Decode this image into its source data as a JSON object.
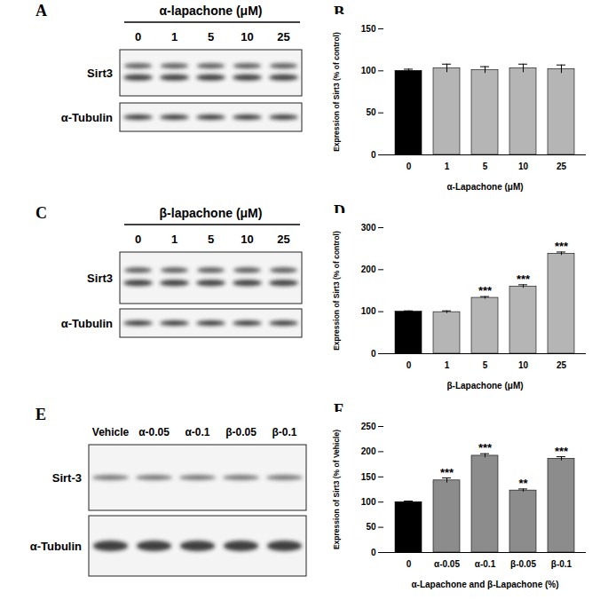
{
  "chart_data": [
    {
      "type": "bar",
      "title": "B",
      "categories": [
        "0",
        "1",
        "5",
        "10",
        "25"
      ],
      "values": [
        100,
        103,
        101,
        103,
        102
      ],
      "errors": [
        2,
        5,
        4,
        5,
        5
      ],
      "significance": [
        null,
        null,
        null,
        null,
        null
      ],
      "colors": [
        "#000000",
        "#b5b5b5",
        "#b5b5b5",
        "#b5b5b5",
        "#b5b5b5"
      ],
      "xlabel": "α-Lapachone (μM)",
      "ylabel": "Expression of Sirt3 (% of control)",
      "ylim": [
        0,
        150
      ],
      "yticks": [
        0,
        50,
        100,
        150
      ]
    },
    {
      "type": "bar",
      "title": "D",
      "categories": [
        "0",
        "1",
        "5",
        "10",
        "25"
      ],
      "values": [
        100,
        99,
        133,
        160,
        238
      ],
      "errors": [
        2,
        3,
        3,
        4,
        4
      ],
      "significance": [
        null,
        null,
        "***",
        "***",
        "***"
      ],
      "colors": [
        "#000000",
        "#b5b5b5",
        "#b5b5b5",
        "#b5b5b5",
        "#b5b5b5"
      ],
      "xlabel": "β-Lapachone (μM)",
      "ylabel": "Expression of Sirt3 (% of control)",
      "ylim": [
        0,
        300
      ],
      "yticks": [
        0,
        100,
        200,
        300
      ]
    },
    {
      "type": "bar",
      "title": "F",
      "categories": [
        "0",
        "α-0.05",
        "α-0.1",
        "β-0.05",
        "β-0.1"
      ],
      "values": [
        100,
        143,
        192,
        123,
        186
      ],
      "errors": [
        2,
        5,
        4,
        3,
        4
      ],
      "significance": [
        null,
        "***",
        "***",
        "**",
        "***"
      ],
      "colors": [
        "#000000",
        "#8c8c8c",
        "#8c8c8c",
        "#8c8c8c",
        "#8c8c8c"
      ],
      "xlabel": "α-Lapachone and β-Lapachone (%)",
      "ylabel": "Expression of Sirt3 (% of Vehicle)",
      "ylim": [
        0,
        250
      ],
      "yticks": [
        0,
        50,
        100,
        150,
        200,
        250
      ]
    }
  ],
  "blots": [
    {
      "panel": "A",
      "header": "α-lapachone (μM)",
      "lanes": [
        "0",
        "1",
        "5",
        "10",
        "25"
      ],
      "rows": [
        "Sirt3",
        "α-Tubulin"
      ]
    },
    {
      "panel": "C",
      "header": "β-lapachone (μM)",
      "lanes": [
        "0",
        "1",
        "5",
        "10",
        "25"
      ],
      "rows": [
        "Sirt3",
        "α-Tubulin"
      ]
    },
    {
      "panel": "E",
      "lanes": [
        "Vehicle",
        "α-0.05",
        "α-0.1",
        "β-0.05",
        "β-0.1"
      ],
      "rows": [
        "Sirt-3",
        "α-Tubulin"
      ]
    }
  ]
}
